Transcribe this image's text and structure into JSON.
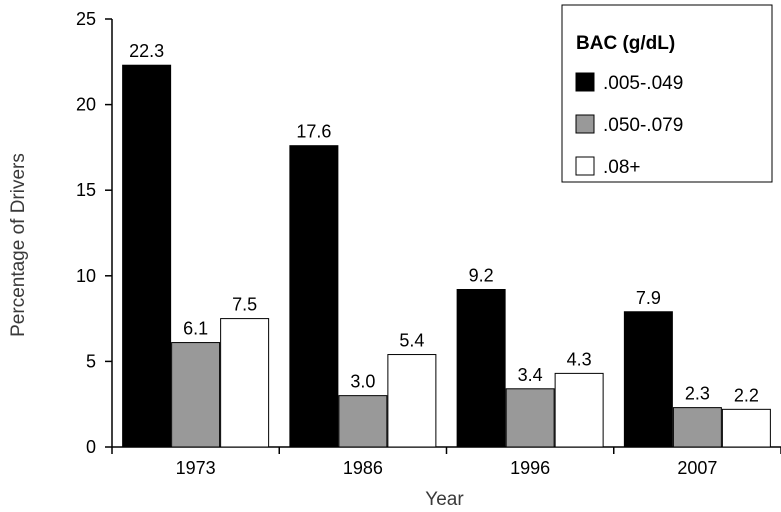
{
  "chart_data": {
    "type": "bar",
    "categories": [
      "1973",
      "1986",
      "1996",
      "2007"
    ],
    "series": [
      {
        "name": ".005-.049",
        "color": "#000000",
        "values": [
          22.3,
          17.6,
          9.2,
          7.9
        ]
      },
      {
        "name": ".050-.079",
        "color": "#999999",
        "values": [
          6.1,
          3.0,
          3.4,
          2.3
        ]
      },
      {
        "name": ".08+",
        "color": "#ffffff",
        "values": [
          7.5,
          5.4,
          4.3,
          2.2
        ]
      }
    ],
    "data_labels": [
      [
        "22.3",
        "6.1",
        "7.5"
      ],
      [
        "17.6",
        "3.0",
        "5.4"
      ],
      [
        "9.2",
        "3.4",
        "4.3"
      ],
      [
        "7.9",
        "2.3",
        "2.2"
      ]
    ],
    "xlabel": "Year",
    "ylabel": "Percentage of Drivers",
    "ylim": [
      0,
      25
    ],
    "yticks": [
      0,
      5,
      10,
      15,
      20,
      25
    ],
    "grid": false,
    "legend": {
      "title": "BAC (g/dL)",
      "position": "top-right"
    }
  }
}
